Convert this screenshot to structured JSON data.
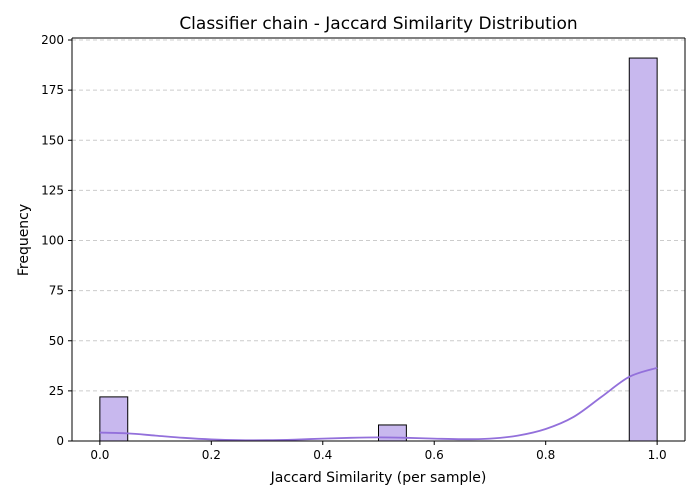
{
  "chart_data": {
    "type": "bar",
    "title": "Classifier chain - Jaccard Similarity Distribution",
    "xlabel": "Jaccard Similarity (per sample)",
    "ylabel": "Frequency",
    "xlim": [
      -0.05,
      1.05
    ],
    "ylim": [
      0,
      201
    ],
    "xticks": [
      "0.0",
      "0.2",
      "0.4",
      "0.6",
      "0.8",
      "1.0"
    ],
    "yticks": [
      "0",
      "25",
      "50",
      "75",
      "100",
      "125",
      "150",
      "175",
      "200"
    ],
    "bin_width": 0.05,
    "bins": [
      {
        "x0": 0.0,
        "x1": 0.05,
        "value": 22
      },
      {
        "x0": 0.5,
        "x1": 0.55,
        "value": 8
      },
      {
        "x0": 0.95,
        "x1": 1.0,
        "value": 191
      }
    ],
    "kde_curve": {
      "x": [
        0.0,
        0.05,
        0.1,
        0.15,
        0.2,
        0.25,
        0.3,
        0.35,
        0.4,
        0.45,
        0.5,
        0.55,
        0.6,
        0.65,
        0.7,
        0.75,
        0.8,
        0.85,
        0.9,
        0.95,
        1.0
      ],
      "y": [
        4.2,
        3.8,
        2.7,
        1.6,
        0.8,
        0.4,
        0.4,
        0.7,
        1.2,
        1.6,
        1.8,
        1.6,
        1.2,
        0.9,
        1.2,
        2.7,
        6.0,
        12.0,
        22.0,
        32.0,
        36.5
      ]
    },
    "grid": "y",
    "colors": {
      "bar_fill": "#c8b8ee",
      "bar_edge": "#000000",
      "kde_line": "#9370db",
      "grid": "#cccccc"
    }
  }
}
